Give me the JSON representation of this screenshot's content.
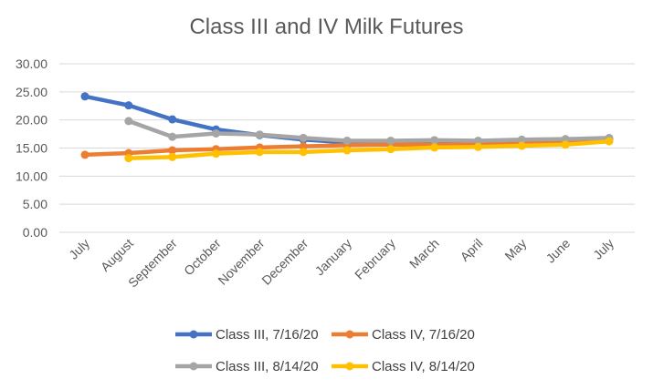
{
  "chart_data": {
    "type": "line",
    "title": "Class III and IV Milk Futures",
    "xlabel": "",
    "ylabel": "",
    "ylim": [
      0,
      30
    ],
    "ytick_labels": [
      "30.00",
      "25.00",
      "20.00",
      "15.00",
      "10.00",
      "5.00",
      "0.00"
    ],
    "yticks": [
      30,
      25,
      20,
      15,
      10,
      5,
      0
    ],
    "categories": [
      "July",
      "August",
      "September",
      "October",
      "November",
      "December",
      "January",
      "February",
      "March",
      "April",
      "May",
      "June",
      "July"
    ],
    "grid": true,
    "legend_position": "bottom",
    "series": [
      {
        "name": "Class III, 7/16/20",
        "color": "#4472c4",
        "values": [
          24.2,
          22.6,
          20.1,
          18.3,
          17.3,
          16.5,
          16.0,
          15.9,
          16.0,
          16.0,
          16.2,
          16.4,
          16.6
        ]
      },
      {
        "name": "Class IV, 7/16/20",
        "color": "#ed7d31",
        "values": [
          13.8,
          14.1,
          14.6,
          14.8,
          15.1,
          15.3,
          15.5,
          15.6,
          15.6,
          15.6,
          15.8,
          16.0,
          16.5
        ]
      },
      {
        "name": "Class III, 8/14/20",
        "color": "#a5a5a5",
        "values": [
          null,
          19.8,
          17.0,
          17.6,
          17.4,
          16.8,
          16.3,
          16.3,
          16.4,
          16.3,
          16.5,
          16.6,
          16.8
        ]
      },
      {
        "name": "Class IV, 8/14/20",
        "color": "#ffc000",
        "values": [
          null,
          13.2,
          13.4,
          14.0,
          14.3,
          14.3,
          14.6,
          14.8,
          15.1,
          15.2,
          15.4,
          15.6,
          16.2
        ]
      }
    ]
  }
}
